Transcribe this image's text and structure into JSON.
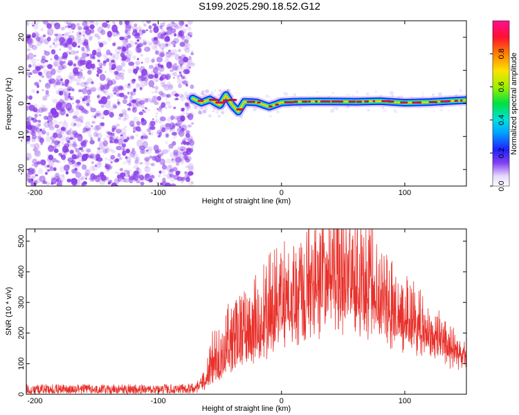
{
  "title": "S199.2025.290.18.52.G12",
  "colors": {
    "snr_line": "#e8302a",
    "speckle": "#8a3ee8",
    "ridge_core": "#d0103a",
    "ridge_mid": "#ffd000",
    "ridge_outer": "#00e0e0",
    "ridge_edge": "#1530ff"
  },
  "chart_data": [
    {
      "type": "heatmap",
      "name": "spectrogram",
      "xlabel": "Height of straight line (km)",
      "ylabel": "Frequency (Hz)",
      "xlim": [
        -207,
        150
      ],
      "ylim": [
        -25,
        25
      ],
      "xticks": [
        -200,
        -100,
        0,
        100
      ],
      "yticks": [
        -20,
        -10,
        0,
        10,
        20
      ],
      "noise_region_x": [
        -207,
        -72
      ],
      "ridge": [
        {
          "x": -72,
          "y": 1.5
        },
        {
          "x": -65,
          "y": 0.2
        },
        {
          "x": -58,
          "y": 1.2
        },
        {
          "x": -50,
          "y": -0.5
        },
        {
          "x": -45,
          "y": 2.5
        },
        {
          "x": -40,
          "y": -0.5
        },
        {
          "x": -35,
          "y": -2.5
        },
        {
          "x": -30,
          "y": 0.5
        },
        {
          "x": -20,
          "y": 0.3
        },
        {
          "x": -10,
          "y": -1.0
        },
        {
          "x": 0,
          "y": 0.3
        },
        {
          "x": 10,
          "y": 0.5
        },
        {
          "x": 30,
          "y": 0.6
        },
        {
          "x": 60,
          "y": 0.5
        },
        {
          "x": 80,
          "y": 0.7
        },
        {
          "x": 100,
          "y": 0.2
        },
        {
          "x": 120,
          "y": 0.4
        },
        {
          "x": 150,
          "y": 1.0
        }
      ],
      "colorbar": {
        "label": "Normalized spectral amplitude",
        "range": [
          0,
          1
        ],
        "ticks": [
          0.0,
          0.2,
          0.4,
          0.6,
          0.8
        ]
      }
    },
    {
      "type": "line",
      "name": "snr",
      "xlabel": "Height of straight line (km)",
      "ylabel": "SNR (10 * v/v)",
      "xlim": [
        -207,
        150
      ],
      "ylim": [
        0,
        540
      ],
      "xticks": [
        -200,
        -100,
        0,
        100
      ],
      "yticks": [
        0,
        100,
        200,
        300,
        400,
        500
      ],
      "series": [
        {
          "name": "SNR",
          "envelope": {
            "x": [
              -207,
              -150,
              -100,
              -70,
              -62,
              -55,
              -45,
              -35,
              -25,
              -15,
              -5,
              5,
              15,
              25,
              35,
              45,
              55,
              65,
              75,
              85,
              95,
              105,
              115,
              125,
              135,
              150
            ],
            "base": [
              15,
              15,
              15,
              15,
              25,
              60,
              95,
              130,
              150,
              185,
              230,
              260,
              290,
              310,
              330,
              355,
              345,
              330,
              305,
              275,
              250,
              230,
              205,
              180,
              155,
              120
            ],
            "peak": [
              32,
              32,
              32,
              35,
              70,
              220,
              250,
              290,
              310,
              360,
              390,
              410,
              450,
              480,
              490,
              520,
              500,
              480,
              450,
              380,
              330,
              290,
              250,
              215,
              185,
              150
            ]
          }
        }
      ]
    }
  ]
}
